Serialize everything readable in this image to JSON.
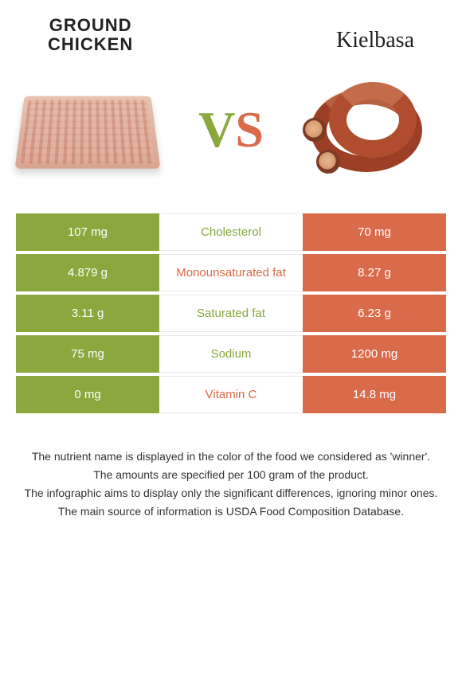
{
  "colors": {
    "green": "#8aa83e",
    "orange": "#d96a4a",
    "text": "#333333",
    "white": "#ffffff"
  },
  "header": {
    "left_title_line1": "GROUND",
    "left_title_line2": "CHICKEN",
    "right_title": "Kielbasa",
    "vs_v": "V",
    "vs_s": "S"
  },
  "rows": [
    {
      "label": "Cholesterol",
      "left": "107 mg",
      "right": "70 mg",
      "winner": "left"
    },
    {
      "label": "Monounsaturated fat",
      "left": "4.879 g",
      "right": "8.27 g",
      "winner": "right"
    },
    {
      "label": "Saturated fat",
      "left": "3.11 g",
      "right": "6.23 g",
      "winner": "left"
    },
    {
      "label": "Sodium",
      "left": "75 mg",
      "right": "1200 mg",
      "winner": "left"
    },
    {
      "label": "Vitamin C",
      "left": "0 mg",
      "right": "14.8 mg",
      "winner": "right"
    }
  ],
  "footer": {
    "line1": "The nutrient name is displayed in the color of the food we considered as 'winner'.",
    "line2": "The amounts are specified per 100 gram of the product.",
    "line3": "The infographic aims to display only the significant differences, ignoring minor ones.",
    "line4": "The main source of information is USDA Food Composition Database."
  }
}
